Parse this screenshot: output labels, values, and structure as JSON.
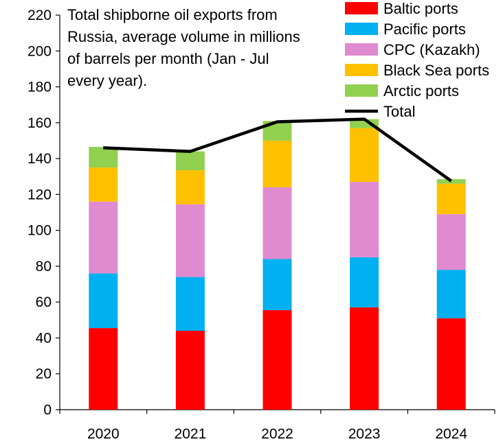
{
  "chart_data": {
    "type": "bar",
    "stacked": true,
    "title_lines": [
      "Total shipborne oil exports from",
      "Russia, average volume in millions",
      "of barrels per month (Jan - Jul",
      "every year)."
    ],
    "categories": [
      "2020",
      "2021",
      "2022",
      "2023",
      "2024"
    ],
    "ylim": [
      0,
      220
    ],
    "yticks": [
      0,
      20,
      40,
      60,
      80,
      100,
      120,
      140,
      160,
      180,
      200,
      220
    ],
    "yticks_labels": [
      "0",
      "20",
      "40",
      "60",
      "80",
      "100",
      "120",
      "140",
      "160",
      "180",
      "200",
      "220"
    ],
    "grid": false,
    "legend_position": "top-right",
    "series": [
      {
        "name": "Baltic ports",
        "color": "#ff0000",
        "values": [
          45.5,
          44,
          55.5,
          57,
          51
        ]
      },
      {
        "name": "Pacific ports",
        "color": "#00b0f0",
        "values": [
          30.5,
          30,
          28.5,
          28,
          27
        ]
      },
      {
        "name": "CPC (Kazakh)",
        "color": "#e08ad0",
        "values": [
          40,
          40.5,
          40,
          42,
          31
        ]
      },
      {
        "name": "Black Sea ports",
        "color": "#ffc000",
        "values": [
          19,
          19,
          26,
          30,
          17
        ]
      },
      {
        "name": "Arctic ports",
        "color": "#92d050",
        "values": [
          11.5,
          10.5,
          11,
          5,
          2.5
        ]
      }
    ],
    "line_series": {
      "name": "Total",
      "color": "#000000",
      "values": [
        146,
        144,
        160.5,
        162,
        127.5
      ]
    }
  }
}
